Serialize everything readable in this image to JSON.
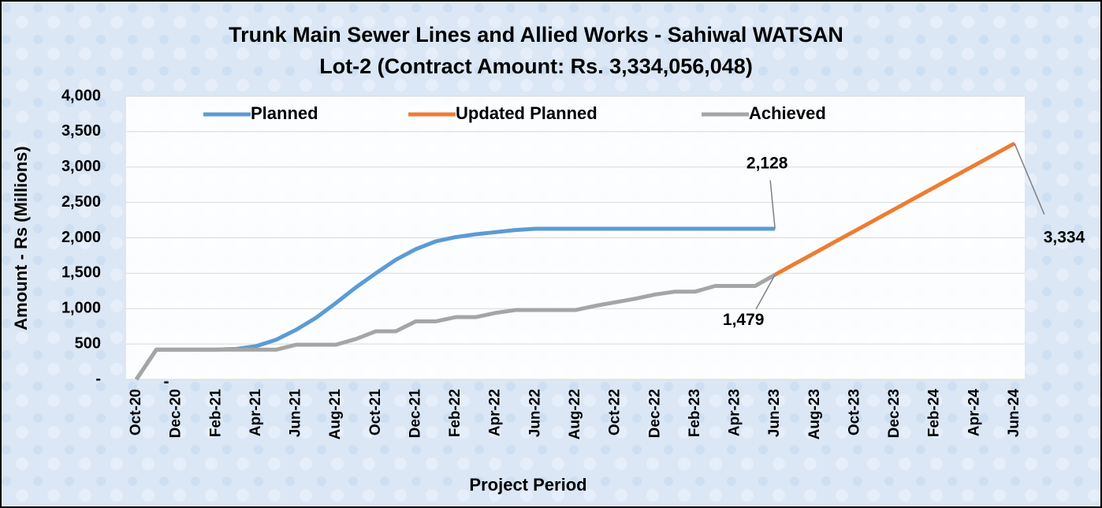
{
  "chart_data": {
    "type": "line",
    "title": "Trunk Main Sewer Lines and Allied Works - Sahiwal WATSAN",
    "subtitle": "Lot-2 (Contract Amount: Rs. 3,334,056,048)",
    "x_label": "Project Period",
    "y_label": "Amount - Rs (Millions)",
    "categories": [
      "Oct-20",
      null,
      "Dec-20",
      null,
      "Feb-21",
      null,
      "Apr-21",
      null,
      "Jun-21",
      null,
      "Aug-21",
      null,
      "Oct-21",
      null,
      "Dec-21",
      null,
      "Feb-22",
      null,
      "Apr-22",
      null,
      "Jun-22",
      null,
      "Aug-22",
      null,
      "Oct-22",
      null,
      "Dec-22",
      null,
      "Feb-23",
      null,
      "Apr-23",
      null,
      "Jun-23",
      null,
      "Aug-23",
      null,
      "Oct-23",
      null,
      "Dec-23",
      null,
      "Feb-24",
      null,
      "Apr-24",
      null,
      "Jun-24"
    ],
    "ylim": [
      0,
      4000
    ],
    "yticks": [
      {
        "value": 0,
        "label": "-"
      },
      500,
      {
        "value": 1000,
        "label": "1,000"
      },
      {
        "value": 1500,
        "label": "1,500"
      },
      {
        "value": 2000,
        "label": "2,000"
      },
      {
        "value": 2500,
        "label": "2,500"
      },
      {
        "value": 3000,
        "label": "3,000"
      },
      {
        "value": 3500,
        "label": "3,500"
      },
      {
        "value": 4000,
        "label": "4,000"
      }
    ],
    "grid": true,
    "legend": "top",
    "series": [
      {
        "name": "Planned",
        "color": "#5b9bd5",
        "values": [
          0,
          420,
          420,
          420,
          420,
          430,
          470,
          560,
          700,
          870,
          1080,
          1300,
          1500,
          1690,
          1840,
          1950,
          2010,
          2050,
          2080,
          2110,
          2128,
          2128,
          2128,
          2128,
          2128,
          2128,
          2128,
          2128,
          2128,
          2128,
          2128,
          2128,
          2128,
          null,
          null,
          null,
          null,
          null,
          null,
          null,
          null,
          null,
          null,
          null,
          null
        ],
        "value_labels": [
          "-",
          null,
          null,
          null,
          null,
          null,
          null,
          null,
          null,
          null,
          null,
          null,
          null,
          null,
          null,
          null,
          null,
          null,
          null,
          null,
          null,
          null,
          null,
          null,
          null,
          null,
          null,
          null,
          null,
          null,
          null,
          null,
          "2,128",
          null,
          null,
          null,
          null,
          null,
          null,
          null,
          null,
          null,
          null,
          null,
          null
        ]
      },
      {
        "name": "Updated Planned",
        "color": "#ed7d31",
        "values": [
          null,
          null,
          null,
          null,
          null,
          null,
          null,
          null,
          null,
          null,
          null,
          null,
          null,
          null,
          null,
          null,
          null,
          null,
          null,
          null,
          null,
          null,
          null,
          null,
          null,
          null,
          null,
          null,
          null,
          null,
          null,
          null,
          1479,
          1634,
          1788,
          1943,
          2097,
          2252,
          2406,
          2561,
          2715,
          2870,
          3025,
          3179,
          3334
        ],
        "value_labels": [
          null,
          null,
          null,
          null,
          null,
          null,
          null,
          null,
          null,
          null,
          null,
          null,
          null,
          null,
          null,
          null,
          null,
          null,
          null,
          null,
          null,
          null,
          null,
          null,
          null,
          null,
          null,
          null,
          null,
          null,
          null,
          null,
          null,
          null,
          null,
          null,
          null,
          null,
          null,
          null,
          null,
          null,
          null,
          null,
          "3,334"
        ]
      },
      {
        "name": "Achieved",
        "color": "#a5a5a5",
        "values": [
          0,
          420,
          420,
          420,
          420,
          420,
          420,
          420,
          490,
          490,
          490,
          570,
          680,
          680,
          820,
          820,
          880,
          880,
          940,
          980,
          980,
          980,
          980,
          1040,
          1090,
          1140,
          1200,
          1240,
          1240,
          1320,
          1320,
          1320,
          1479,
          null,
          null,
          null,
          null,
          null,
          null,
          null,
          null,
          null,
          null,
          null,
          null
        ],
        "value_labels": [
          null,
          null,
          null,
          null,
          null,
          null,
          null,
          null,
          null,
          null,
          null,
          null,
          null,
          null,
          null,
          null,
          null,
          null,
          null,
          null,
          null,
          null,
          null,
          null,
          null,
          null,
          null,
          null,
          null,
          null,
          null,
          null,
          "1,479",
          null,
          null,
          null,
          null,
          null,
          null,
          null,
          null,
          null,
          null,
          null,
          null
        ]
      }
    ]
  }
}
